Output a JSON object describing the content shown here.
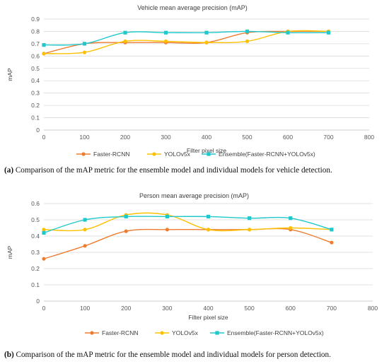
{
  "charts": [
    {
      "id": "a",
      "type": "line",
      "title": "Vehicle mean average precision (mAP)",
      "xlabel": "Filter pixel size",
      "ylabel": "mAP",
      "xlim": [
        0,
        800
      ],
      "ylim": [
        0,
        0.9
      ],
      "xticks": [
        0,
        100,
        200,
        300,
        400,
        500,
        600,
        700,
        800
      ],
      "yticks": [
        0,
        0.1,
        0.2,
        0.3,
        0.4,
        0.5,
        0.6,
        0.7,
        0.8,
        0.9
      ],
      "grid": "horizontal",
      "legend_position": "bottom",
      "x": [
        0,
        100,
        200,
        300,
        400,
        500,
        600,
        700
      ],
      "series": [
        {
          "name": "Faster-RCNN",
          "color": "#ed7d31",
          "marker": "circle",
          "values": [
            0.62,
            0.7,
            0.71,
            0.71,
            0.71,
            0.79,
            0.8,
            0.8
          ]
        },
        {
          "name": "YOLOv5x",
          "color": "#ffc000",
          "marker": "circle",
          "values": [
            0.62,
            0.63,
            0.72,
            0.72,
            0.71,
            0.72,
            0.8,
            0.8
          ]
        },
        {
          "name": "Ensemble(Faster-RCNN+YOLOv5x)",
          "color": "#1fc8cc",
          "marker": "square",
          "values": [
            0.69,
            0.7,
            0.79,
            0.79,
            0.79,
            0.8,
            0.79,
            0.79
          ]
        }
      ]
    },
    {
      "id": "b",
      "type": "line",
      "title": "Person mean average precision (mAP)",
      "xlabel": "Filter pixel size",
      "ylabel": "mAP",
      "xlim": [
        0,
        800
      ],
      "ylim": [
        0,
        0.6
      ],
      "xticks": [
        0,
        100,
        200,
        300,
        400,
        500,
        600,
        700,
        800
      ],
      "yticks": [
        0,
        0.1,
        0.2,
        0.3,
        0.4,
        0.5,
        0.6
      ],
      "grid": "horizontal",
      "legend_position": "bottom",
      "x": [
        0,
        100,
        200,
        300,
        400,
        500,
        600,
        700
      ],
      "series": [
        {
          "name": "Faster-RCNN",
          "color": "#ed7d31",
          "marker": "circle",
          "values": [
            0.26,
            0.34,
            0.43,
            0.44,
            0.44,
            0.44,
            0.44,
            0.36
          ]
        },
        {
          "name": "YOLOv5x",
          "color": "#ffc000",
          "marker": "circle",
          "values": [
            0.44,
            0.44,
            0.53,
            0.53,
            0.44,
            0.44,
            0.45,
            0.44
          ]
        },
        {
          "name": "Ensemble(Faster-RCNN+YOLOv5x)",
          "color": "#1fc8cc",
          "marker": "square",
          "values": [
            0.42,
            0.5,
            0.52,
            0.52,
            0.52,
            0.51,
            0.51,
            0.44
          ]
        }
      ]
    }
  ],
  "captions": {
    "a": {
      "label": "(a)",
      "text": " Comparison of the mAP metric for the ensemble model and individual models for vehicle detection."
    },
    "b": {
      "label": "(b)",
      "text": " Comparison of the mAP metric for the ensemble model and individual models for person detection."
    }
  }
}
